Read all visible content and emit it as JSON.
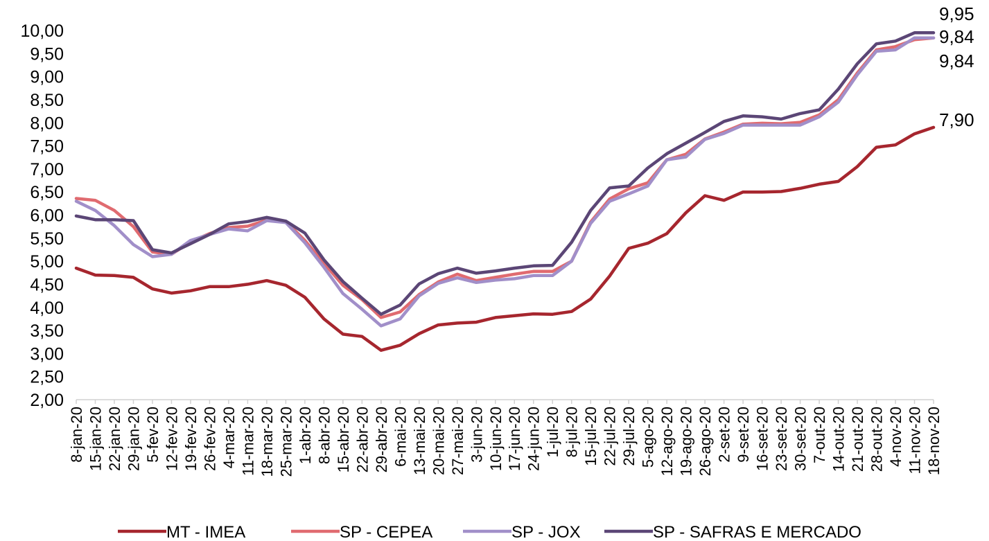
{
  "chart_data": {
    "type": "line",
    "title": "",
    "xlabel": "",
    "ylabel": "",
    "ylim": [
      2.0,
      10.0
    ],
    "y_tick_step": 0.5,
    "y_tick_labels": [
      "2,00",
      "2,50",
      "3,00",
      "3,50",
      "4,00",
      "4,50",
      "5,00",
      "5,50",
      "6,00",
      "6,50",
      "7,00",
      "7,50",
      "8,00",
      "8,50",
      "9,00",
      "9,50",
      "10,00"
    ],
    "grid": false,
    "legend_position": "bottom",
    "categories": [
      "8-jan-20",
      "15-jan-20",
      "22-jan-20",
      "29-jan-20",
      "5-fev-20",
      "12-fev-20",
      "19-fev-20",
      "26-fev-20",
      "4-mar-20",
      "11-mar-20",
      "18-mar-20",
      "25-mar-20",
      "1-abr-20",
      "8-abr-20",
      "15-abr-20",
      "22-abr-20",
      "29-abr-20",
      "6-mai-20",
      "13-mai-20",
      "20-mai-20",
      "27-mai-20",
      "3-jun-20",
      "10-jun-20",
      "17-jun-20",
      "24-jun-20",
      "1-jul-20",
      "8-jul-20",
      "15-jul-20",
      "22-jul-20",
      "29-jul-20",
      "5-ago-20",
      "12-ago-20",
      "19-ago-20",
      "26-ago-20",
      "2-set-20",
      "9-set-20",
      "16-set-20",
      "23-set-20",
      "30-set-20",
      "7-out-20",
      "14-out-20",
      "21-out-20",
      "28-out-20",
      "4-nov-20",
      "11-nov-20",
      "18-nov-20"
    ],
    "series": [
      {
        "name": "MT - IMEA",
        "color": "#A6262E",
        "end_label": "7,90",
        "values": [
          4.85,
          4.7,
          4.69,
          4.65,
          4.4,
          4.31,
          4.36,
          4.45,
          4.45,
          4.5,
          4.58,
          4.48,
          4.22,
          3.75,
          3.42,
          3.37,
          3.07,
          3.18,
          3.43,
          3.62,
          3.66,
          3.68,
          3.78,
          3.82,
          3.86,
          3.85,
          3.91,
          4.18,
          4.68,
          5.28,
          5.39,
          5.6,
          6.05,
          6.42,
          6.32,
          6.5,
          6.5,
          6.51,
          6.58,
          6.67,
          6.73,
          7.05,
          7.47,
          7.52,
          7.76,
          7.9
        ]
      },
      {
        "name": "SP - CEPEA",
        "color": "#E06B70",
        "end_label": "9,84",
        "values": [
          6.36,
          6.32,
          6.1,
          5.75,
          5.2,
          5.15,
          5.42,
          5.6,
          5.73,
          5.76,
          5.89,
          5.86,
          5.45,
          4.96,
          4.48,
          4.17,
          3.78,
          3.9,
          4.28,
          4.55,
          4.72,
          4.58,
          4.65,
          4.72,
          4.78,
          4.78,
          5.0,
          5.85,
          6.35,
          6.57,
          6.7,
          7.2,
          7.32,
          7.65,
          7.8,
          7.97,
          7.99,
          7.98,
          8.01,
          8.17,
          8.5,
          9.08,
          9.58,
          9.65,
          9.8,
          9.84
        ]
      },
      {
        "name": "SP - JOX",
        "color": "#A18FC9",
        "end_label": "9,84",
        "values": [
          6.3,
          6.1,
          5.77,
          5.36,
          5.1,
          5.15,
          5.45,
          5.58,
          5.7,
          5.66,
          5.88,
          5.84,
          5.4,
          4.87,
          4.3,
          3.96,
          3.6,
          3.75,
          4.25,
          4.52,
          4.64,
          4.54,
          4.59,
          4.62,
          4.69,
          4.69,
          5.0,
          5.82,
          6.3,
          6.46,
          6.63,
          7.2,
          7.26,
          7.64,
          7.77,
          7.95,
          7.95,
          7.95,
          7.95,
          8.13,
          8.45,
          9.04,
          9.55,
          9.58,
          9.84,
          9.84
        ]
      },
      {
        "name": "SP - SAFRAS E MERCADO",
        "color": "#5B4676",
        "end_label": "9,95",
        "values": [
          5.98,
          5.9,
          5.9,
          5.88,
          5.25,
          5.18,
          5.38,
          5.58,
          5.81,
          5.86,
          5.95,
          5.87,
          5.61,
          5.03,
          4.56,
          4.2,
          3.85,
          4.05,
          4.51,
          4.73,
          4.85,
          4.74,
          4.79,
          4.85,
          4.9,
          4.91,
          5.41,
          6.1,
          6.59,
          6.63,
          7.02,
          7.33,
          7.56,
          7.79,
          8.03,
          8.15,
          8.13,
          8.08,
          8.2,
          8.28,
          8.73,
          9.28,
          9.71,
          9.77,
          9.95,
          9.95
        ]
      }
    ]
  }
}
